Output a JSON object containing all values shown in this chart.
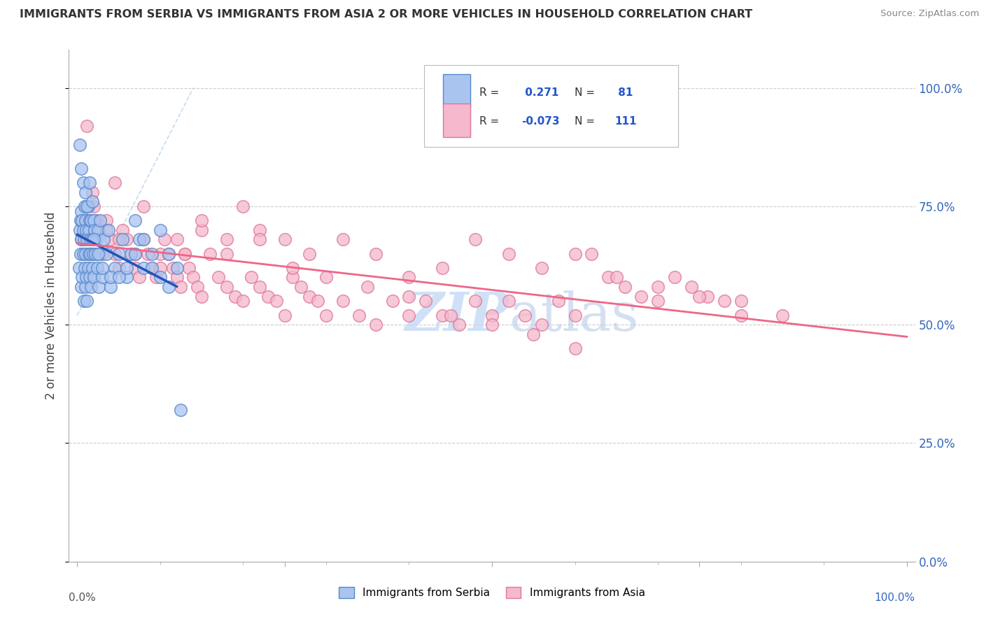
{
  "title": "IMMIGRANTS FROM SERBIA VS IMMIGRANTS FROM ASIA 2 OR MORE VEHICLES IN HOUSEHOLD CORRELATION CHART",
  "source": "Source: ZipAtlas.com",
  "ylabel": "2 or more Vehicles in Household",
  "serbia_color": "#aac4f0",
  "asia_color": "#f5b8cc",
  "serbia_edge": "#5588cc",
  "asia_edge": "#dd7799",
  "serbia_line_color": "#2255bb",
  "asia_line_color": "#ee6688",
  "watermark_text": "ZIPatlas",
  "watermark_color": "#c5daf5",
  "serbia_r": "0.271",
  "serbia_n": "81",
  "asia_r": "-0.073",
  "asia_n": "111",
  "serbia_scatter_x": [
    0.2,
    0.3,
    0.4,
    0.4,
    0.5,
    0.5,
    0.5,
    0.6,
    0.6,
    0.7,
    0.7,
    0.8,
    0.8,
    0.9,
    0.9,
    1.0,
    1.0,
    1.0,
    1.1,
    1.1,
    1.2,
    1.2,
    1.3,
    1.3,
    1.4,
    1.4,
    1.5,
    1.5,
    1.6,
    1.6,
    1.7,
    1.7,
    1.8,
    1.8,
    1.9,
    2.0,
    2.0,
    2.1,
    2.2,
    2.3,
    2.4,
    2.5,
    2.6,
    2.7,
    2.8,
    3.0,
    3.2,
    3.5,
    3.8,
    4.0,
    4.5,
    5.0,
    5.5,
    6.0,
    6.5,
    7.0,
    7.5,
    8.0,
    9.0,
    10.0,
    11.0,
    12.0,
    0.3,
    0.5,
    0.7,
    1.0,
    1.2,
    1.5,
    1.8,
    2.0,
    2.5,
    3.0,
    4.0,
    5.0,
    6.0,
    7.0,
    8.0,
    9.0,
    10.0,
    11.0,
    12.5
  ],
  "serbia_scatter_y": [
    62,
    70,
    65,
    72,
    68,
    58,
    74,
    60,
    72,
    65,
    70,
    55,
    68,
    62,
    75,
    58,
    65,
    72,
    60,
    70,
    55,
    68,
    62,
    75,
    65,
    70,
    60,
    72,
    65,
    68,
    58,
    72,
    62,
    68,
    65,
    60,
    72,
    70,
    65,
    68,
    62,
    70,
    58,
    65,
    72,
    60,
    68,
    65,
    70,
    58,
    62,
    65,
    68,
    60,
    65,
    72,
    68,
    62,
    65,
    70,
    58,
    62,
    88,
    83,
    80,
    78,
    75,
    80,
    76,
    68,
    65,
    62,
    60,
    60,
    62,
    65,
    68,
    62,
    60,
    65,
    32
  ],
  "asia_scatter_x": [
    0.5,
    1.0,
    1.5,
    2.0,
    2.5,
    3.0,
    3.5,
    4.0,
    4.5,
    5.0,
    5.5,
    6.0,
    6.5,
    7.0,
    7.5,
    8.0,
    8.5,
    9.0,
    9.5,
    10.0,
    10.5,
    11.0,
    11.5,
    12.0,
    12.5,
    13.0,
    13.5,
    14.0,
    14.5,
    15.0,
    16.0,
    17.0,
    18.0,
    19.0,
    20.0,
    21.0,
    22.0,
    23.0,
    24.0,
    25.0,
    26.0,
    27.0,
    28.0,
    29.0,
    30.0,
    32.0,
    34.0,
    36.0,
    38.0,
    40.0,
    42.0,
    44.0,
    46.0,
    48.0,
    50.0,
    52.0,
    54.0,
    56.0,
    58.0,
    60.0,
    62.0,
    64.0,
    66.0,
    68.0,
    70.0,
    72.0,
    74.0,
    76.0,
    78.0,
    80.0,
    1.2,
    1.8,
    2.3,
    3.5,
    5.0,
    7.0,
    10.0,
    13.0,
    15.0,
    18.0,
    20.0,
    22.0,
    25.0,
    28.0,
    32.0,
    36.0,
    40.0,
    44.0,
    48.0,
    52.0,
    56.0,
    60.0,
    65.0,
    70.0,
    75.0,
    80.0,
    85.0,
    4.5,
    8.0,
    12.0,
    15.0,
    18.0,
    22.0,
    26.0,
    30.0,
    35.0,
    40.0,
    45.0,
    50.0,
    55.0,
    60.0
  ],
  "asia_scatter_y": [
    68,
    72,
    65,
    75,
    70,
    65,
    72,
    68,
    65,
    62,
    70,
    68,
    65,
    62,
    60,
    68,
    65,
    62,
    60,
    65,
    68,
    65,
    62,
    60,
    58,
    65,
    62,
    60,
    58,
    56,
    65,
    60,
    58,
    56,
    55,
    60,
    58,
    56,
    55,
    52,
    60,
    58,
    56,
    55,
    52,
    55,
    52,
    50,
    55,
    52,
    55,
    52,
    50,
    55,
    52,
    55,
    52,
    50,
    55,
    52,
    65,
    60,
    58,
    56,
    55,
    60,
    58,
    56,
    55,
    52,
    92,
    78,
    72,
    70,
    68,
    65,
    62,
    65,
    70,
    68,
    75,
    70,
    68,
    65,
    68,
    65,
    60,
    62,
    68,
    65,
    62,
    65,
    60,
    58,
    56,
    55,
    52,
    80,
    75,
    68,
    72,
    65,
    68,
    62,
    60,
    58,
    56,
    52,
    50,
    48,
    45
  ]
}
